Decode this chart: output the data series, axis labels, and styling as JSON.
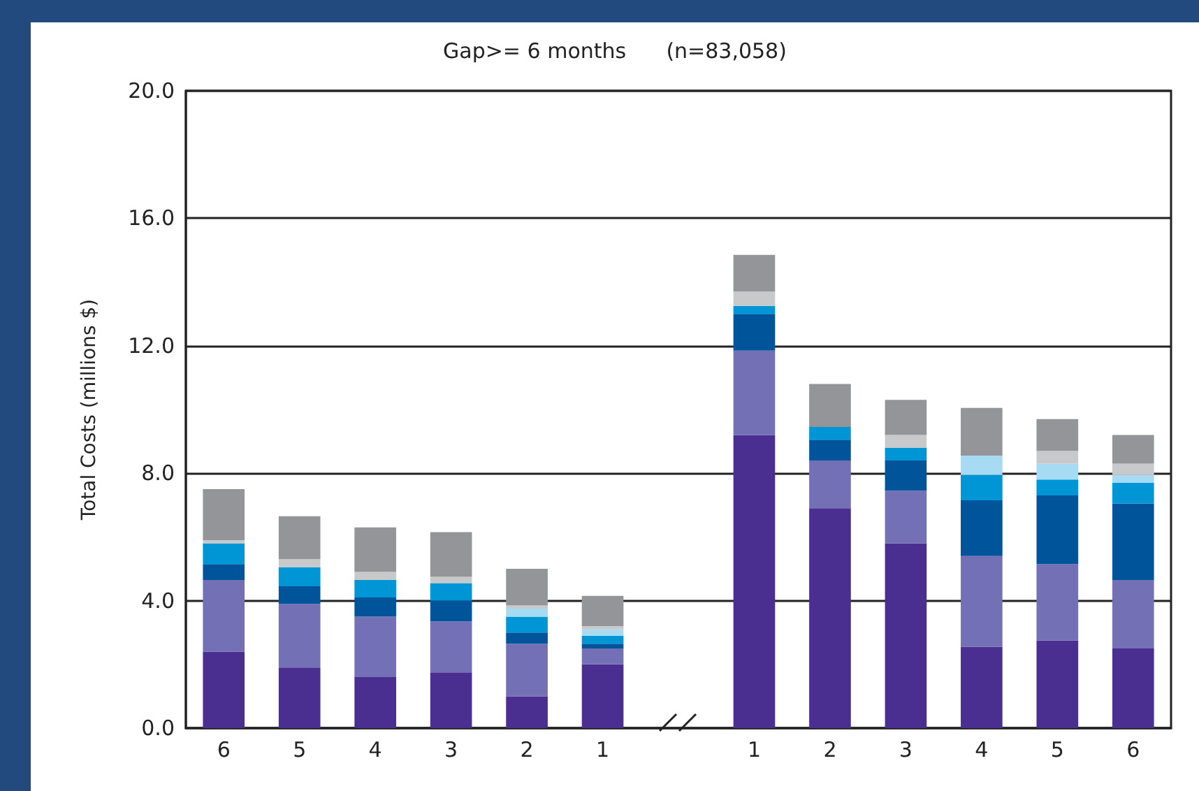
{
  "chart_data": {
    "type": "bar",
    "stacked": true,
    "title": "Gap>= 6 months      (n=83,058)",
    "ylabel": "Total Costs (millions $)",
    "categories": [
      "6",
      "5",
      "4",
      "3",
      "2",
      "1",
      null,
      "1",
      "2",
      "3",
      "4",
      "5",
      "6"
    ],
    "series": [
      {
        "color": "#4a2f91",
        "values": [
          2.4,
          1.9,
          1.6,
          1.75,
          1.0,
          2.0,
          null,
          9.2,
          6.9,
          5.8,
          2.55,
          2.75,
          2.5
        ]
      },
      {
        "color": "#7370b5",
        "values": [
          2.25,
          2.0,
          1.9,
          1.6,
          1.65,
          0.5,
          null,
          2.65,
          1.5,
          1.65,
          2.85,
          2.4,
          2.15
        ]
      },
      {
        "color": "#00559a",
        "values": [
          0.5,
          0.55,
          0.6,
          0.65,
          0.35,
          0.15,
          null,
          1.15,
          0.65,
          0.95,
          1.75,
          2.15,
          2.4
        ]
      },
      {
        "color": "#0096d6",
        "values": [
          0.65,
          0.6,
          0.55,
          0.55,
          0.5,
          0.25,
          null,
          0.25,
          0.4,
          0.4,
          0.8,
          0.5,
          0.65
        ]
      },
      {
        "color": "#a6dbf3",
        "values": [
          0,
          0,
          0,
          0,
          0.25,
          0.2,
          null,
          0,
          0,
          0,
          0.6,
          0.5,
          0.25
        ]
      },
      {
        "color": "#c8c9cb",
        "values": [
          0.1,
          0.25,
          0.25,
          0.2,
          0.1,
          0.1,
          null,
          0.45,
          0,
          0.4,
          0,
          0.4,
          0.35
        ]
      },
      {
        "color": "#939598",
        "values": [
          1.6,
          1.35,
          1.4,
          1.4,
          1.15,
          0.95,
          null,
          1.15,
          1.35,
          1.1,
          1.5,
          1.0,
          0.9
        ]
      }
    ],
    "ylim": [
      0,
      20
    ],
    "yticks": [
      {
        "value": 0,
        "label": "0.0"
      },
      {
        "value": 4,
        "label": "4.0"
      },
      {
        "value": 8,
        "label": "8.0"
      },
      {
        "value": 12,
        "label": "12.0"
      },
      {
        "value": 16,
        "label": "16.0"
      },
      {
        "value": 20,
        "label": "20.0"
      }
    ],
    "grid": "y"
  }
}
